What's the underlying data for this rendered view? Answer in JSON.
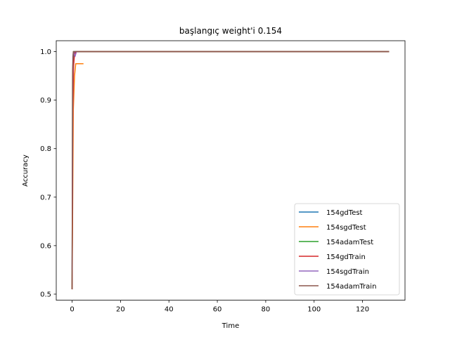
{
  "chart_data": {
    "type": "line",
    "title": "başlangıç weight'i 0.154",
    "xlabel": "Time",
    "ylabel": "Accuracy",
    "xlim": [
      -6.55,
      137.55
    ],
    "ylim": [
      0.4875,
      1.0225
    ],
    "xticks": [
      0,
      20,
      40,
      60,
      80,
      100,
      120
    ],
    "yticks": [
      0.5,
      0.6,
      0.7,
      0.8,
      0.9,
      1.0
    ],
    "ytick_labels": [
      "0.5",
      "0.6",
      "0.7",
      "0.8",
      "0.9",
      "1.0"
    ],
    "grid": false,
    "legend_position": "lower-right",
    "series": [
      {
        "name": "154gdTest",
        "color": "#1f77b4",
        "x": [
          0,
          0.3,
          0.6,
          1.0,
          1.5,
          131
        ],
        "y": [
          0.51,
          0.9,
          0.99,
          1.0,
          1.0,
          1.0
        ]
      },
      {
        "name": "154sgdTest",
        "color": "#ff7f0e",
        "x": [
          0,
          0.5,
          1.0,
          1.5,
          2.0,
          4.7
        ],
        "y": [
          0.51,
          0.88,
          0.95,
          0.975,
          0.975,
          0.975
        ]
      },
      {
        "name": "154adamTest",
        "color": "#2ca02c",
        "x": [
          0,
          0.2,
          0.5,
          1.0,
          131
        ],
        "y": [
          0.51,
          0.95,
          1.0,
          1.0,
          1.0
        ]
      },
      {
        "name": "154gdTrain",
        "color": "#d62728",
        "x": [
          0,
          0.3,
          0.6,
          1.0,
          1.5,
          131
        ],
        "y": [
          0.51,
          0.88,
          0.97,
          0.995,
          1.0,
          1.0
        ]
      },
      {
        "name": "154sgdTrain",
        "color": "#9467bd",
        "x": [
          0,
          0.3,
          0.6,
          1.2,
          1.8,
          2.0
        ],
        "y": [
          0.55,
          0.99,
          1.0,
          0.99,
          1.0,
          1.0
        ]
      },
      {
        "name": "154adamTrain",
        "color": "#8c564b",
        "x": [
          0,
          0.2,
          0.5,
          1.0,
          131
        ],
        "y": [
          0.51,
          0.96,
          1.0,
          1.0,
          1.0
        ]
      }
    ]
  }
}
